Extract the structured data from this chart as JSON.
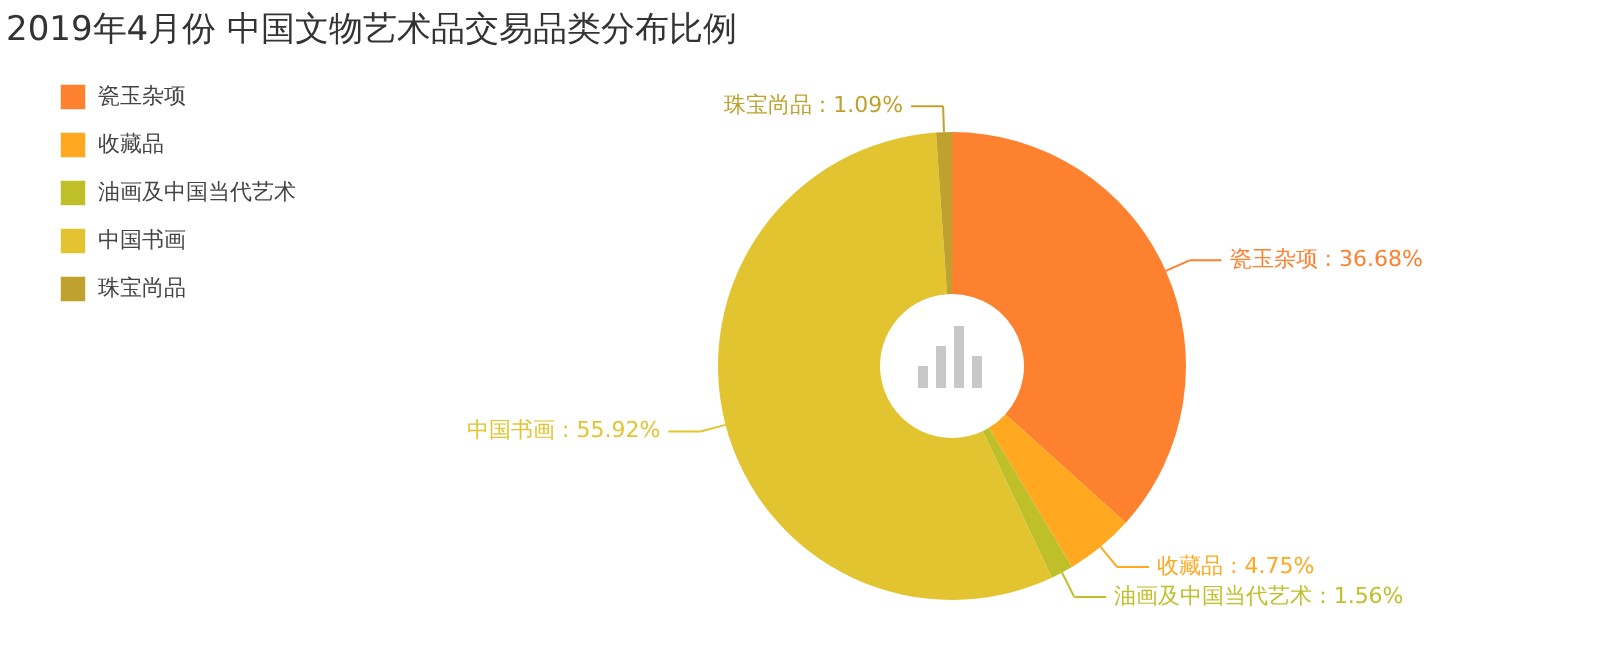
{
  "chart_data": {
    "type": "donut",
    "title": "2019年4月份 中国文物艺术品交易品类分布比例",
    "categories": [
      "瓷玉杂项",
      "收藏品",
      "油画及中国当代艺术",
      "中国书画",
      "珠宝尚品"
    ],
    "values": [
      36.68,
      4.75,
      1.56,
      55.92,
      1.09
    ],
    "colors": [
      "#fe8130",
      "#ffa820",
      "#bfbf2a",
      "#e2c431",
      "#bfa22e"
    ],
    "value_labels": [
      "瓷玉杂项 : 36.68%",
      "收藏品 : 4.75%",
      "油画及中国当代艺术 : 1.56%",
      "中国书画 : 55.92%",
      "珠宝尚品 : 1.09%"
    ],
    "legend": "top left"
  }
}
